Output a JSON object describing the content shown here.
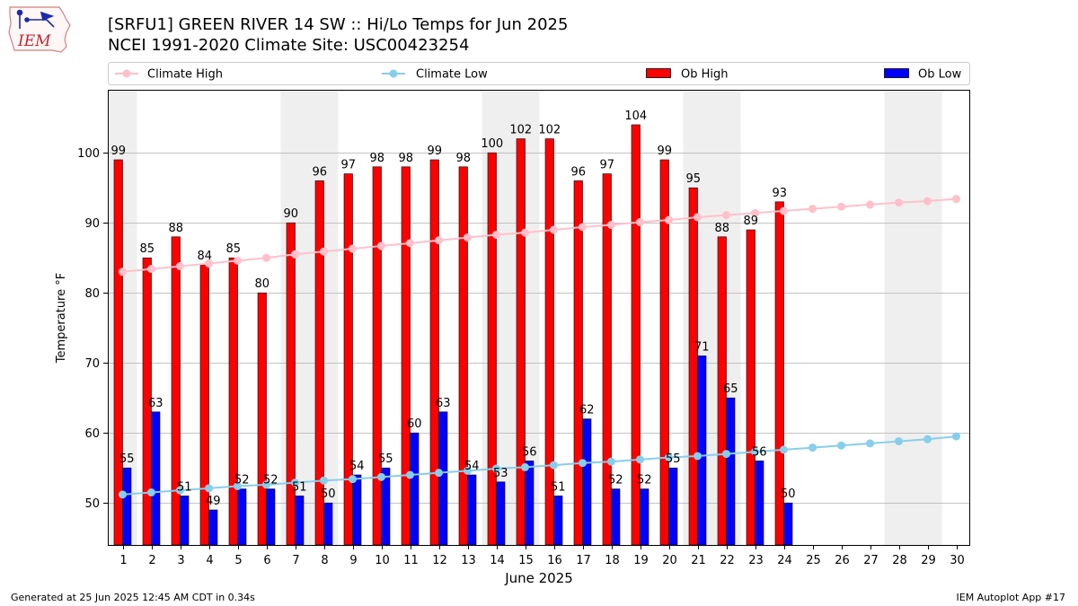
{
  "header": {
    "title_line1": "[SRFU1] GREEN RIVER 14 SW :: Hi/Lo Temps for Jun 2025",
    "title_line2": "NCEI 1991-2020 Climate Site: USC00423254"
  },
  "logo": {
    "text": "IEM",
    "icon": "iowa-state-outline-icon"
  },
  "footer": {
    "left": "Generated at 25 Jun 2025 12:45 AM CDT in 0.34s",
    "right": "IEM Autoplot App #17"
  },
  "colors": {
    "ob_high": "#ff0000",
    "ob_low": "#0000ff",
    "climate_high": "#ffc0cb",
    "climate_low": "#87ceeb",
    "weekend_shade": "#efefef",
    "grid": "#b0b0b0"
  },
  "chart_data": {
    "type": "bar",
    "xlabel": "June 2025",
    "ylabel": "Temperature °F",
    "ylim": [
      44,
      109
    ],
    "yticks": [
      50,
      60,
      70,
      80,
      90,
      100
    ],
    "grid": true,
    "legend_placement": "top",
    "categories": [
      "1",
      "2",
      "3",
      "4",
      "5",
      "6",
      "7",
      "8",
      "9",
      "10",
      "11",
      "12",
      "13",
      "14",
      "15",
      "16",
      "17",
      "18",
      "19",
      "20",
      "21",
      "22",
      "23",
      "24",
      "25",
      "26",
      "27",
      "28",
      "29",
      "30"
    ],
    "weekend_days": [
      1,
      7,
      8,
      14,
      15,
      21,
      22,
      28,
      29
    ],
    "series": [
      {
        "name": "Ob High",
        "kind": "bar",
        "values": [
          99,
          85,
          88,
          84,
          85,
          80,
          90,
          96,
          97,
          98,
          98,
          99,
          98,
          100,
          102,
          102,
          96,
          97,
          104,
          99,
          95,
          88,
          89,
          93,
          null,
          null,
          null,
          null,
          null,
          null
        ]
      },
      {
        "name": "Ob Low",
        "kind": "bar",
        "values": [
          55,
          63,
          51,
          49,
          52,
          52,
          51,
          50,
          54,
          55,
          60,
          63,
          54,
          53,
          56,
          51,
          62,
          52,
          52,
          55,
          71,
          65,
          56,
          50,
          null,
          null,
          null,
          null,
          null,
          null
        ]
      },
      {
        "name": "Climate High",
        "kind": "line",
        "values": [
          83.0,
          83.4,
          83.8,
          84.2,
          84.6,
          85.0,
          85.5,
          85.9,
          86.3,
          86.7,
          87.1,
          87.5,
          87.9,
          88.3,
          88.6,
          89.0,
          89.4,
          89.7,
          90.1,
          90.4,
          90.8,
          91.1,
          91.4,
          91.7,
          92.0,
          92.3,
          92.6,
          92.9,
          93.1,
          93.4
        ]
      },
      {
        "name": "Climate Low",
        "kind": "line",
        "values": [
          51.2,
          51.5,
          51.8,
          52.1,
          52.4,
          52.6,
          52.9,
          53.2,
          53.4,
          53.7,
          54.0,
          54.3,
          54.6,
          54.9,
          55.1,
          55.4,
          55.7,
          55.9,
          56.2,
          56.5,
          56.7,
          57.0,
          57.3,
          57.6,
          57.9,
          58.2,
          58.5,
          58.8,
          59.1,
          59.5
        ]
      }
    ]
  }
}
